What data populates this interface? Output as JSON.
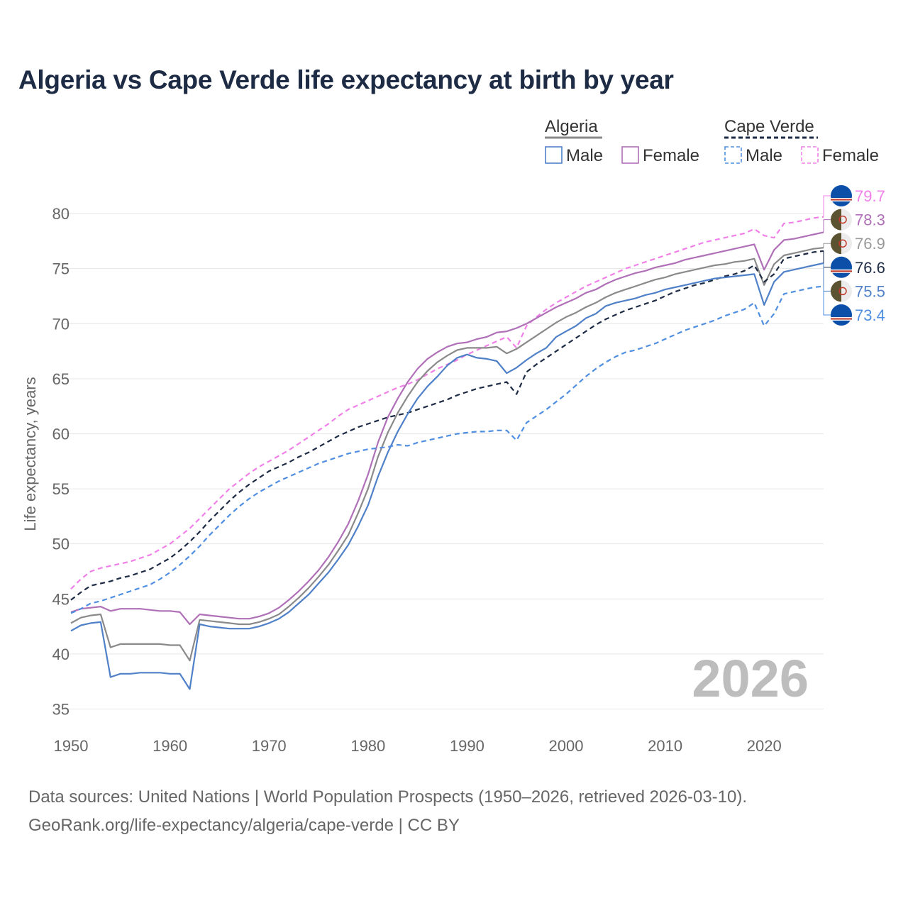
{
  "chart_data": {
    "type": "line",
    "title": "Algeria vs Cape Verde life expectancy at birth by year",
    "xlabel": "",
    "ylabel": "Life expectancy, years",
    "xlim": [
      1950,
      2026
    ],
    "ylim": [
      34,
      82
    ],
    "y_ticks": [
      35,
      40,
      45,
      50,
      55,
      60,
      65,
      70,
      75,
      80
    ],
    "x_ticks": [
      1950,
      1960,
      1970,
      1980,
      1990,
      2000,
      2010,
      2020
    ],
    "year_label": "2026",
    "grid": true,
    "legend_position": "top-right",
    "legend": {
      "groups": [
        {
          "name": "Algeria",
          "style": "solid",
          "items": [
            {
              "label": "Male",
              "series": "algeria_male"
            },
            {
              "label": "Female",
              "series": "algeria_female"
            }
          ]
        },
        {
          "name": "Cape Verde",
          "style": "dashed",
          "items": [
            {
              "label": "Male",
              "series": "cape_verde_male"
            },
            {
              "label": "Female",
              "series": "cape_verde_female"
            }
          ]
        }
      ]
    },
    "x": [
      1950,
      1951,
      1952,
      1953,
      1954,
      1955,
      1956,
      1957,
      1958,
      1959,
      1960,
      1961,
      1962,
      1963,
      1964,
      1965,
      1966,
      1967,
      1968,
      1969,
      1970,
      1971,
      1972,
      1973,
      1974,
      1975,
      1976,
      1977,
      1978,
      1979,
      1980,
      1981,
      1982,
      1983,
      1984,
      1985,
      1986,
      1987,
      1988,
      1989,
      1990,
      1991,
      1992,
      1993,
      1994,
      1995,
      1996,
      1997,
      1998,
      1999,
      2000,
      2001,
      2002,
      2003,
      2004,
      2005,
      2006,
      2007,
      2008,
      2009,
      2010,
      2011,
      2012,
      2013,
      2014,
      2015,
      2016,
      2017,
      2018,
      2019,
      2020,
      2021,
      2022,
      2023,
      2024,
      2025,
      2026
    ],
    "series": [
      {
        "id": "cape_verde_female",
        "name": "Cape Verde Female",
        "color": "#f080e8",
        "dash": "dashed",
        "values": [
          45.9,
          46.8,
          47.5,
          47.8,
          48.0,
          48.2,
          48.4,
          48.7,
          49.0,
          49.5,
          50.0,
          50.7,
          51.4,
          52.3,
          53.2,
          54.1,
          55.0,
          55.7,
          56.4,
          57.0,
          57.5,
          58.0,
          58.5,
          59.1,
          59.7,
          60.3,
          60.9,
          61.6,
          62.2,
          62.6,
          63.0,
          63.4,
          63.8,
          64.2,
          64.5,
          64.9,
          65.4,
          65.9,
          66.3,
          66.7,
          67.2,
          67.6,
          68.0,
          68.4,
          68.8,
          67.8,
          69.8,
          70.6,
          71.3,
          71.9,
          72.4,
          72.9,
          73.4,
          73.8,
          74.2,
          74.6,
          75.0,
          75.3,
          75.6,
          75.9,
          76.2,
          76.5,
          76.8,
          77.1,
          77.4,
          77.6,
          77.8,
          78.0,
          78.2,
          78.6,
          78.0,
          77.8,
          79.1,
          79.2,
          79.4,
          79.6,
          79.7
        ]
      },
      {
        "id": "algeria_female",
        "name": "Algeria Female",
        "color": "#b070b8",
        "dash": "solid",
        "values": [
          43.8,
          44.1,
          44.2,
          44.3,
          43.9,
          44.1,
          44.1,
          44.1,
          44.0,
          43.9,
          43.9,
          43.8,
          42.7,
          43.6,
          43.5,
          43.4,
          43.3,
          43.2,
          43.2,
          43.4,
          43.7,
          44.2,
          44.9,
          45.7,
          46.6,
          47.6,
          48.8,
          50.2,
          51.8,
          53.9,
          56.3,
          59.2,
          61.5,
          63.2,
          64.7,
          65.9,
          66.8,
          67.4,
          67.9,
          68.2,
          68.3,
          68.6,
          68.8,
          69.2,
          69.3,
          69.6,
          70.0,
          70.5,
          71.0,
          71.5,
          71.9,
          72.3,
          72.8,
          73.1,
          73.6,
          74.0,
          74.3,
          74.6,
          74.8,
          75.1,
          75.3,
          75.5,
          75.8,
          76.0,
          76.2,
          76.4,
          76.6,
          76.8,
          77.0,
          77.2,
          74.9,
          76.7,
          77.6,
          77.7,
          77.9,
          78.1,
          78.3
        ]
      },
      {
        "id": "algeria_total",
        "name": "Algeria",
        "color": "#8a8a8a",
        "dash": "solid",
        "values": [
          42.8,
          43.3,
          43.5,
          43.6,
          40.6,
          40.9,
          40.9,
          40.9,
          40.9,
          40.9,
          40.8,
          40.8,
          39.4,
          43.1,
          43.0,
          42.9,
          42.8,
          42.7,
          42.7,
          42.9,
          43.2,
          43.6,
          44.3,
          45.1,
          46.0,
          47.0,
          48.1,
          49.4,
          50.8,
          52.8,
          55.0,
          57.9,
          60.1,
          61.9,
          63.4,
          64.7,
          65.7,
          66.5,
          67.1,
          67.6,
          67.8,
          67.8,
          67.8,
          67.9,
          67.3,
          67.7,
          68.3,
          68.9,
          69.5,
          70.1,
          70.6,
          71.0,
          71.5,
          71.9,
          72.4,
          72.8,
          73.1,
          73.4,
          73.7,
          74.0,
          74.2,
          74.5,
          74.7,
          74.9,
          75.1,
          75.3,
          75.4,
          75.6,
          75.7,
          75.9,
          73.5,
          75.4,
          76.2,
          76.4,
          76.6,
          76.8,
          76.9
        ]
      },
      {
        "id": "cape_verde_total",
        "name": "Cape Verde",
        "color": "#1d2b45",
        "dash": "dashed",
        "values": [
          44.9,
          45.6,
          46.2,
          46.4,
          46.6,
          46.9,
          47.1,
          47.4,
          47.7,
          48.2,
          48.7,
          49.4,
          50.2,
          51.1,
          52.1,
          53.0,
          53.9,
          54.7,
          55.4,
          56.0,
          56.6,
          57.0,
          57.4,
          57.9,
          58.3,
          58.8,
          59.3,
          59.8,
          60.2,
          60.6,
          60.9,
          61.2,
          61.5,
          61.7,
          61.9,
          62.2,
          62.5,
          62.8,
          63.1,
          63.5,
          63.8,
          64.1,
          64.3,
          64.5,
          64.7,
          63.6,
          65.6,
          66.3,
          66.9,
          67.5,
          68.1,
          68.7,
          69.3,
          69.9,
          70.4,
          70.8,
          71.2,
          71.5,
          71.8,
          72.1,
          72.5,
          72.9,
          73.2,
          73.5,
          73.7,
          74.0,
          74.3,
          74.5,
          74.8,
          75.3,
          73.8,
          74.5,
          75.9,
          76.1,
          76.3,
          76.5,
          76.6
        ]
      },
      {
        "id": "algeria_male",
        "name": "Algeria Male",
        "color": "#4f80c8",
        "dash": "solid",
        "values": [
          42.1,
          42.6,
          42.8,
          42.9,
          37.9,
          38.2,
          38.2,
          38.3,
          38.3,
          38.3,
          38.2,
          38.2,
          36.8,
          42.7,
          42.5,
          42.4,
          42.3,
          42.3,
          42.3,
          42.5,
          42.8,
          43.2,
          43.8,
          44.6,
          45.4,
          46.4,
          47.4,
          48.6,
          49.9,
          51.6,
          53.5,
          56.1,
          58.3,
          60.2,
          61.8,
          63.2,
          64.3,
          65.2,
          66.2,
          66.9,
          67.2,
          66.9,
          66.8,
          66.6,
          65.5,
          66.0,
          66.7,
          67.3,
          67.8,
          68.8,
          69.3,
          69.8,
          70.5,
          70.9,
          71.6,
          71.9,
          72.1,
          72.3,
          72.6,
          72.8,
          73.1,
          73.3,
          73.5,
          73.7,
          73.9,
          74.1,
          74.2,
          74.3,
          74.4,
          74.5,
          71.7,
          73.8,
          74.7,
          74.9,
          75.1,
          75.3,
          75.5
        ]
      },
      {
        "id": "cape_verde_male",
        "name": "Cape Verde Male",
        "color": "#4f8ee0",
        "dash": "dashed",
        "values": [
          43.7,
          44.1,
          44.6,
          44.8,
          45.1,
          45.4,
          45.7,
          46.0,
          46.3,
          46.8,
          47.4,
          48.1,
          48.9,
          49.8,
          50.8,
          51.7,
          52.6,
          53.4,
          54.1,
          54.7,
          55.2,
          55.7,
          56.1,
          56.5,
          56.9,
          57.3,
          57.6,
          57.9,
          58.2,
          58.4,
          58.6,
          58.7,
          58.8,
          59.0,
          58.9,
          59.2,
          59.4,
          59.6,
          59.8,
          60.0,
          60.1,
          60.2,
          60.2,
          60.3,
          60.3,
          59.4,
          61.0,
          61.6,
          62.2,
          62.9,
          63.6,
          64.4,
          65.2,
          65.9,
          66.5,
          67.0,
          67.4,
          67.6,
          67.9,
          68.2,
          68.6,
          69.0,
          69.4,
          69.7,
          70.0,
          70.3,
          70.7,
          71.0,
          71.3,
          71.9,
          69.8,
          70.9,
          72.7,
          72.9,
          73.1,
          73.3,
          73.4
        ]
      }
    ],
    "end_labels": [
      {
        "series": "cape_verde_female",
        "text": "79.7",
        "flag": "Cape Verde",
        "color": "#f080e8"
      },
      {
        "series": "algeria_female",
        "text": "78.3",
        "flag": "Algeria",
        "color": "#b070b8"
      },
      {
        "series": "algeria_total",
        "text": "76.9",
        "flag": "Algeria",
        "color": "#999999"
      },
      {
        "series": "cape_verde_total",
        "text": "76.6",
        "flag": "Cape Verde",
        "color": "#1d2b45"
      },
      {
        "series": "algeria_male",
        "text": "75.5",
        "flag": "Algeria",
        "color": "#4f80c8"
      },
      {
        "series": "cape_verde_male",
        "text": "73.4",
        "flag": "Cape Verde",
        "color": "#4f8ee0"
      }
    ]
  },
  "footer": {
    "line1": "Data sources: United Nations | World Population Prospects (1950–2026, retrieved 2026-03-10).",
    "line2": "GeoRank.org/life-expectancy/algeria/cape-verde | CC BY"
  }
}
